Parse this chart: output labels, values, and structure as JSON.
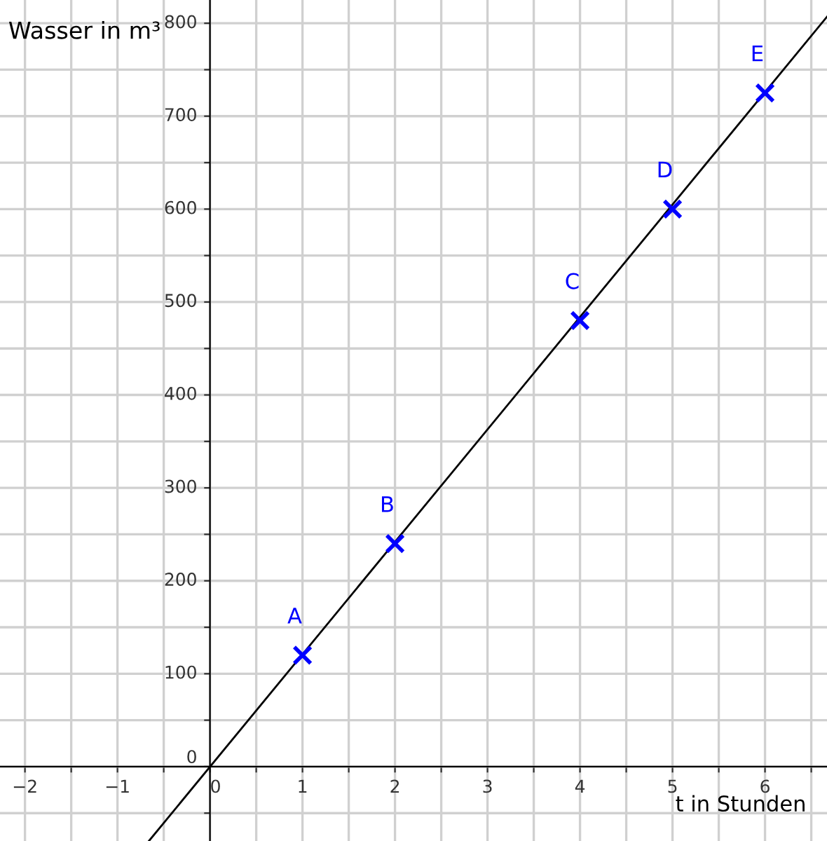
{
  "chart_data": {
    "type": "scatter",
    "xlabel": "t in Stunden",
    "ylabel": "Wasser in m³",
    "series": [
      {
        "color": "#0000ff",
        "marker": "cross",
        "x": [
          1,
          2,
          4,
          5,
          6
        ],
        "values": [
          120,
          240,
          480,
          600,
          725
        ]
      },
      {
        "type": "line",
        "color": "#000000",
        "x": [
          -0.66,
          6.67
        ],
        "values": [
          -80,
          807
        ]
      }
    ],
    "annotations": [
      {
        "text": "A",
        "x": 1,
        "y": 120
      },
      {
        "text": "B",
        "x": 2,
        "y": 240
      },
      {
        "text": "C",
        "x": 4,
        "y": 480
      },
      {
        "text": "D",
        "x": 5,
        "y": 600
      },
      {
        "text": "E",
        "x": 6,
        "y": 725
      }
    ],
    "xlim": [
      -2.27,
      6.67
    ],
    "ylim": [
      -80,
      825
    ],
    "xticks": [
      {
        "value": -2,
        "label": "−2"
      },
      {
        "value": -1.5,
        "label": null
      },
      {
        "value": -1,
        "label": "−1"
      },
      {
        "value": -0.5,
        "label": null
      },
      0,
      {
        "value": 0.5,
        "label": null
      },
      1,
      {
        "value": 1.5,
        "label": null
      },
      2,
      {
        "value": 2.5,
        "label": null
      },
      3,
      {
        "value": 3.5,
        "label": null
      },
      4,
      {
        "value": 4.5,
        "label": null
      },
      5,
      {
        "value": 5.5,
        "label": null
      },
      6,
      {
        "value": 6.5,
        "label": null
      }
    ],
    "yticks": [
      {
        "value": -50,
        "label": null
      },
      0,
      {
        "value": 50,
        "label": null
      },
      100,
      {
        "value": 150,
        "label": null
      },
      200,
      {
        "value": 250,
        "label": null
      },
      300,
      {
        "value": 350,
        "label": null
      },
      400,
      {
        "value": 450,
        "label": null
      },
      500,
      {
        "value": 550,
        "label": null
      },
      600,
      {
        "value": 650,
        "label": null
      },
      700,
      {
        "value": 750,
        "label": null
      },
      800
    ],
    "grid": true
  }
}
